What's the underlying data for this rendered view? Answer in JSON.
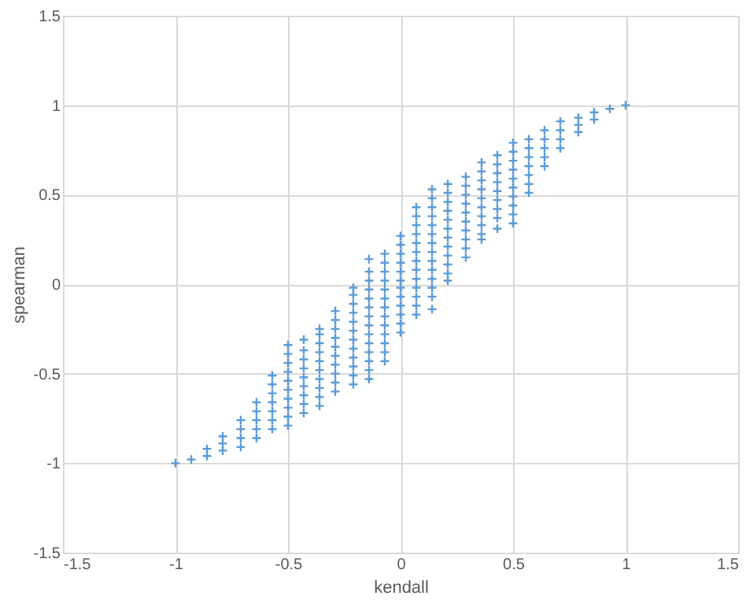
{
  "chart_data": {
    "type": "scatter",
    "xlabel": "kendall",
    "ylabel": "spearman",
    "xlim": [
      -1.5,
      1.5
    ],
    "ylim": [
      -1.5,
      1.5
    ],
    "xticks": [
      -1.5,
      -1,
      -0.5,
      0,
      0.5,
      1,
      1.5
    ],
    "yticks": [
      -1.5,
      -1,
      -0.5,
      0,
      0.5,
      1,
      1.5
    ],
    "grid": true,
    "marker": "cross",
    "series": [
      {
        "color": "#5b9bd5",
        "x": [
          -1
        ],
        "values": [
          -1
        ]
      },
      {
        "color": "#5b9bd5",
        "x": [
          -0.93
        ],
        "values": [
          -0.98
        ]
      },
      {
        "color": "#5b9bd5",
        "x": [
          -0.86,
          -0.86
        ],
        "values": [
          -0.96,
          -0.92
        ]
      },
      {
        "color": "#5b9bd5",
        "x": [
          -0.79,
          -0.79,
          -0.79
        ],
        "values": [
          -0.93,
          -0.89,
          -0.85
        ]
      },
      {
        "color": "#5b9bd5",
        "x": [
          -0.71,
          -0.71,
          -0.71,
          -0.71
        ],
        "values": [
          -0.91,
          -0.86,
          -0.81,
          -0.76
        ]
      },
      {
        "color": "#5b9bd5",
        "x": [
          -0.64,
          -0.64,
          -0.64,
          -0.64,
          -0.64
        ],
        "values": [
          -0.86,
          -0.81,
          -0.76,
          -0.71,
          -0.66
        ]
      },
      {
        "color": "#5b9bd5",
        "x": [
          -0.57,
          -0.57,
          -0.57,
          -0.57,
          -0.57,
          -0.57,
          -0.57
        ],
        "values": [
          -0.81,
          -0.76,
          -0.71,
          -0.66,
          -0.61,
          -0.56,
          -0.51
        ]
      },
      {
        "color": "#5b9bd5",
        "x": [
          -0.5,
          -0.5,
          -0.5,
          -0.5,
          -0.5,
          -0.5,
          -0.5,
          -0.5,
          -0.5,
          -0.5
        ],
        "values": [
          -0.79,
          -0.74,
          -0.69,
          -0.64,
          -0.59,
          -0.54,
          -0.49,
          -0.44,
          -0.39,
          -0.34
        ]
      },
      {
        "color": "#5b9bd5",
        "x": [
          -0.43,
          -0.43,
          -0.43,
          -0.43,
          -0.43,
          -0.43,
          -0.43,
          -0.43,
          -0.43
        ],
        "values": [
          -0.72,
          -0.67,
          -0.62,
          -0.57,
          -0.52,
          -0.47,
          -0.42,
          -0.37,
          -0.31
        ]
      },
      {
        "color": "#5b9bd5",
        "x": [
          -0.36,
          -0.36,
          -0.36,
          -0.36,
          -0.36,
          -0.36,
          -0.36,
          -0.36,
          -0.36,
          -0.36
        ],
        "values": [
          -0.68,
          -0.63,
          -0.58,
          -0.53,
          -0.48,
          -0.43,
          -0.38,
          -0.33,
          -0.28,
          -0.25
        ]
      },
      {
        "color": "#5b9bd5",
        "x": [
          -0.29,
          -0.29,
          -0.29,
          -0.29,
          -0.29,
          -0.29,
          -0.29,
          -0.29,
          -0.29,
          -0.29
        ],
        "values": [
          -0.6,
          -0.55,
          -0.5,
          -0.45,
          -0.4,
          -0.35,
          -0.3,
          -0.25,
          -0.2,
          -0.15
        ]
      },
      {
        "color": "#5b9bd5",
        "x": [
          -0.21,
          -0.21,
          -0.21,
          -0.21,
          -0.21,
          -0.21,
          -0.21,
          -0.21,
          -0.21,
          -0.21,
          -0.21,
          -0.21
        ],
        "values": [
          -0.56,
          -0.51,
          -0.46,
          -0.41,
          -0.36,
          -0.31,
          -0.26,
          -0.21,
          -0.16,
          -0.11,
          -0.06,
          -0.02
        ]
      },
      {
        "color": "#5b9bd5",
        "x": [
          -0.14,
          -0.14,
          -0.14,
          -0.14,
          -0.14,
          -0.14,
          -0.14,
          -0.14,
          -0.14,
          -0.14,
          -0.14,
          -0.14,
          -0.14,
          -0.14
        ],
        "values": [
          -0.53,
          -0.48,
          -0.43,
          -0.38,
          -0.33,
          -0.28,
          -0.23,
          -0.18,
          -0.13,
          -0.08,
          -0.03,
          0.02,
          0.07,
          0.14
        ]
      },
      {
        "color": "#5b9bd5",
        "x": [
          -0.07,
          -0.07,
          -0.07,
          -0.07,
          -0.07,
          -0.07,
          -0.07,
          -0.07,
          -0.07,
          -0.07,
          -0.07,
          -0.07,
          -0.07
        ],
        "values": [
          -0.43,
          -0.38,
          -0.33,
          -0.28,
          -0.23,
          -0.18,
          -0.13,
          -0.08,
          -0.03,
          0.02,
          0.07,
          0.12,
          0.17
        ]
      },
      {
        "color": "#5b9bd5",
        "x": [
          0,
          0,
          0,
          0,
          0,
          0,
          0,
          0,
          0,
          0,
          0,
          0
        ],
        "values": [
          0.27,
          0.22,
          0.17,
          0.12,
          0.07,
          0.02,
          -0.02,
          -0.07,
          -0.12,
          -0.17,
          -0.22,
          -0.27
        ]
      },
      {
        "color": "#5b9bd5",
        "x": [
          0.07,
          0.07,
          0.07,
          0.07,
          0.07,
          0.07,
          0.07,
          0.07,
          0.07,
          0.07,
          0.07,
          0.07,
          0.07
        ],
        "values": [
          0.43,
          0.38,
          0.33,
          0.28,
          0.23,
          0.18,
          0.13,
          0.08,
          0.03,
          -0.02,
          -0.07,
          -0.12,
          -0.17
        ]
      },
      {
        "color": "#5b9bd5",
        "x": [
          0.14,
          0.14,
          0.14,
          0.14,
          0.14,
          0.14,
          0.14,
          0.14,
          0.14,
          0.14,
          0.14,
          0.14,
          0.14,
          0.14
        ],
        "values": [
          0.53,
          0.48,
          0.43,
          0.38,
          0.33,
          0.28,
          0.23,
          0.18,
          0.13,
          0.08,
          0.03,
          -0.02,
          -0.07,
          -0.14
        ]
      },
      {
        "color": "#5b9bd5",
        "x": [
          0.21,
          0.21,
          0.21,
          0.21,
          0.21,
          0.21,
          0.21,
          0.21,
          0.21,
          0.21,
          0.21,
          0.21
        ],
        "values": [
          0.56,
          0.51,
          0.46,
          0.41,
          0.36,
          0.31,
          0.26,
          0.21,
          0.16,
          0.11,
          0.06,
          0.02
        ]
      },
      {
        "color": "#5b9bd5",
        "x": [
          0.29,
          0.29,
          0.29,
          0.29,
          0.29,
          0.29,
          0.29,
          0.29,
          0.29,
          0.29
        ],
        "values": [
          0.6,
          0.55,
          0.5,
          0.45,
          0.4,
          0.35,
          0.3,
          0.25,
          0.2,
          0.15
        ]
      },
      {
        "color": "#5b9bd5",
        "x": [
          0.36,
          0.36,
          0.36,
          0.36,
          0.36,
          0.36,
          0.36,
          0.36,
          0.36,
          0.36
        ],
        "values": [
          0.68,
          0.63,
          0.58,
          0.53,
          0.48,
          0.43,
          0.38,
          0.33,
          0.28,
          0.25
        ]
      },
      {
        "color": "#5b9bd5",
        "x": [
          0.43,
          0.43,
          0.43,
          0.43,
          0.43,
          0.43,
          0.43,
          0.43,
          0.43
        ],
        "values": [
          0.72,
          0.67,
          0.62,
          0.57,
          0.52,
          0.47,
          0.42,
          0.37,
          0.31
        ]
      },
      {
        "color": "#5b9bd5",
        "x": [
          0.5,
          0.5,
          0.5,
          0.5,
          0.5,
          0.5,
          0.5,
          0.5,
          0.5,
          0.5
        ],
        "values": [
          0.79,
          0.74,
          0.69,
          0.64,
          0.59,
          0.54,
          0.49,
          0.44,
          0.39,
          0.34
        ]
      },
      {
        "color": "#5b9bd5",
        "x": [
          0.57,
          0.57,
          0.57,
          0.57,
          0.57,
          0.57,
          0.57
        ],
        "values": [
          0.81,
          0.76,
          0.71,
          0.66,
          0.61,
          0.56,
          0.51
        ]
      },
      {
        "color": "#5b9bd5",
        "x": [
          0.64,
          0.64,
          0.64,
          0.64,
          0.64
        ],
        "values": [
          0.86,
          0.81,
          0.76,
          0.71,
          0.66
        ]
      },
      {
        "color": "#5b9bd5",
        "x": [
          0.71,
          0.71,
          0.71,
          0.71
        ],
        "values": [
          0.91,
          0.86,
          0.81,
          0.76
        ]
      },
      {
        "color": "#5b9bd5",
        "x": [
          0.79,
          0.79,
          0.79
        ],
        "values": [
          0.93,
          0.89,
          0.85
        ]
      },
      {
        "color": "#5b9bd5",
        "x": [
          0.86,
          0.86
        ],
        "values": [
          0.96,
          0.92
        ]
      },
      {
        "color": "#5b9bd5",
        "x": [
          0.93
        ],
        "values": [
          0.98
        ]
      },
      {
        "color": "#5b9bd5",
        "x": [
          1
        ],
        "values": [
          1
        ]
      }
    ]
  }
}
